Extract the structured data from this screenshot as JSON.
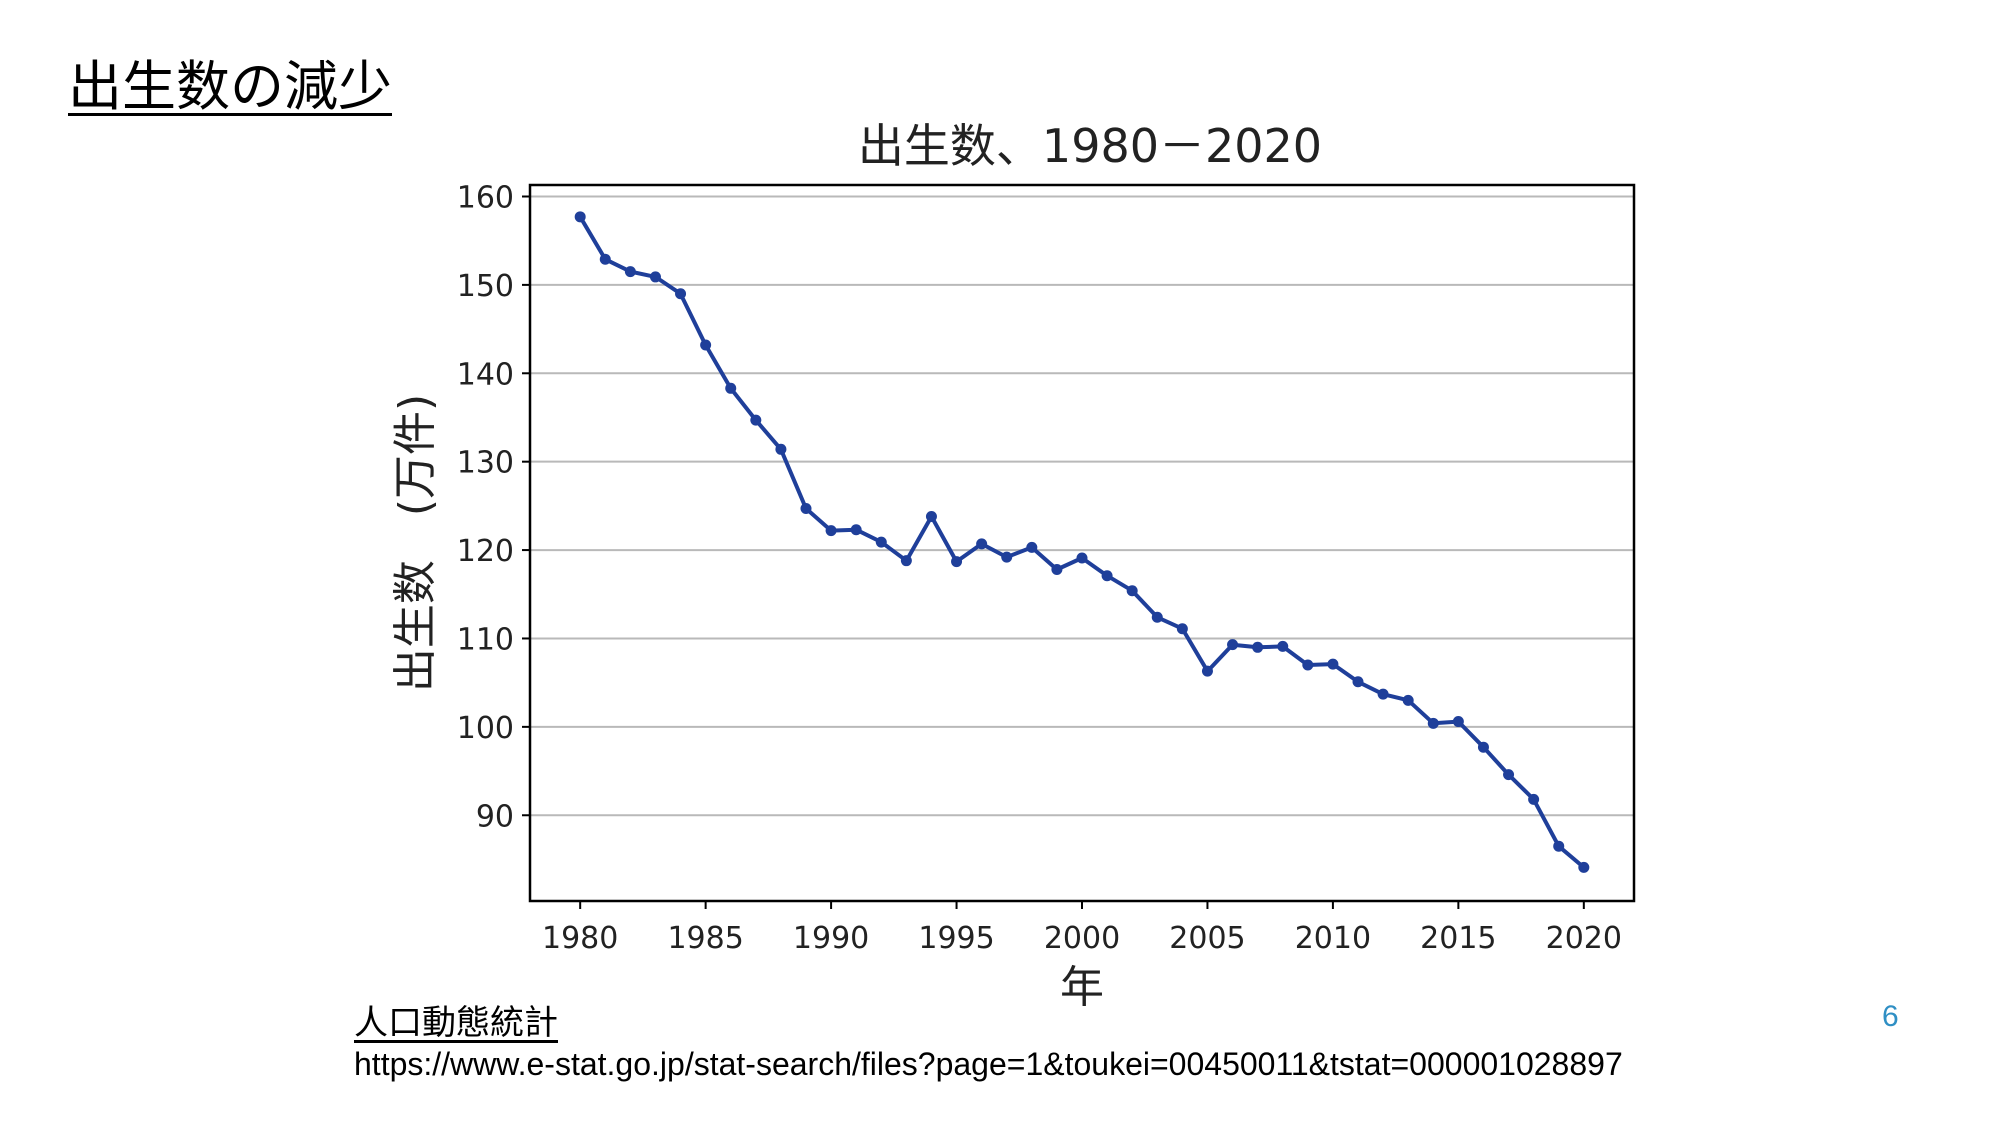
{
  "slide": {
    "title": "出生数の減少",
    "page_number": "6",
    "accent_color": "#2f8fc4"
  },
  "source": {
    "title": "人口動態統計",
    "url": "https://www.e-stat.go.jp/stat-search/files?page=1&toukei=00450011&tstat=000001028897"
  },
  "chart_data": {
    "type": "line",
    "title": "出生数、1980－2020",
    "xlabel": "年",
    "ylabel": "出生数　(万件)",
    "x": [
      1980,
      1981,
      1982,
      1983,
      1984,
      1985,
      1986,
      1987,
      1988,
      1989,
      1990,
      1991,
      1992,
      1993,
      1994,
      1995,
      1996,
      1997,
      1998,
      1999,
      2000,
      2001,
      2002,
      2003,
      2004,
      2005,
      2006,
      2007,
      2008,
      2009,
      2010,
      2011,
      2012,
      2013,
      2014,
      2015,
      2016,
      2017,
      2018,
      2019,
      2020
    ],
    "series": [
      {
        "values": [
          157.7,
          152.9,
          151.5,
          150.9,
          149.0,
          143.2,
          138.3,
          134.7,
          131.4,
          124.7,
          122.2,
          122.3,
          120.9,
          118.8,
          123.8,
          118.7,
          120.7,
          119.2,
          120.3,
          117.8,
          119.1,
          117.1,
          115.4,
          112.4,
          111.1,
          106.3,
          109.3,
          109.0,
          109.1,
          107.0,
          107.1,
          105.1,
          103.7,
          103.0,
          100.4,
          100.6,
          97.7,
          94.6,
          91.8,
          86.5,
          84.1
        ],
        "color": "#1f3f9a"
      }
    ],
    "xticks": [
      1980,
      1985,
      1990,
      1995,
      2000,
      2005,
      2010,
      2015,
      2020
    ],
    "yticks": [
      90,
      100,
      110,
      120,
      130,
      140,
      150,
      160
    ],
    "xlim": [
      1978.0,
      2022.0
    ],
    "ylim": [
      80.3,
      161.3
    ],
    "grid": "horizontal"
  }
}
